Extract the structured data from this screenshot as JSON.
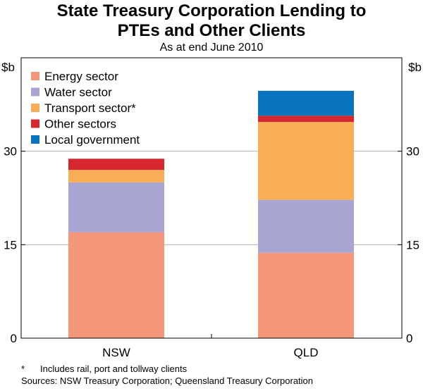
{
  "title_line1": "State Treasury Corporation Lending to",
  "title_line2": "PTEs and Other Clients",
  "subtitle": "As at end June 2010",
  "footnote_marker": "*",
  "footnote_text": "Includes rail, port and tollway clients",
  "sources": "Sources: NSW Treasury Corporation; Queensland Treasury Corporation",
  "chart_data": {
    "type": "bar",
    "stacked": true,
    "categories": [
      "NSW",
      "QLD"
    ],
    "unit_left": "$b",
    "unit_right": "$b",
    "ylim": [
      0,
      45
    ],
    "yticks": [
      0,
      15,
      30
    ],
    "legend_position": "top-left",
    "series": [
      {
        "name": "Energy sector",
        "color": "#f4977a",
        "values": [
          17.0,
          13.7
        ]
      },
      {
        "name": "Water sector",
        "color": "#a8a5d3",
        "values": [
          8.0,
          8.5
        ]
      },
      {
        "name": "Transport sector*",
        "color": "#f9ad57",
        "values": [
          2.0,
          12.5
        ]
      },
      {
        "name": "Other sectors",
        "color": "#d7272e",
        "values": [
          1.8,
          1.0
        ]
      },
      {
        "name": "Local government",
        "color": "#0a73bd",
        "values": [
          0.0,
          4.0
        ]
      }
    ]
  }
}
